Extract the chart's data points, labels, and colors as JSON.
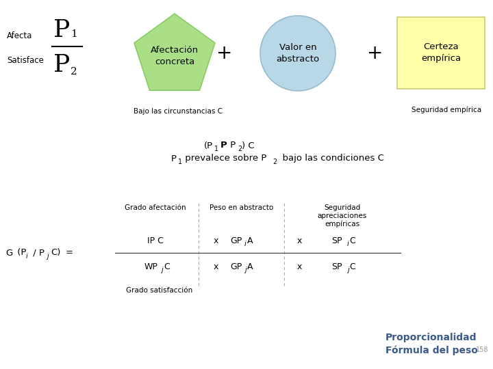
{
  "bg_color": "#ffffff",
  "blue_text_color": "#3C5A8A",
  "page_number_color": "#999999",
  "pentagon_color": "#AADE87",
  "pentagon_border": "#88CC66",
  "ellipse_color": "#B8D8E8",
  "ellipse_border": "#99BBCC",
  "rect_color": "#FFFFAA",
  "rect_border": "#CCCC77",
  "pentagon_text": "Afectación\nconcreta",
  "ellipse_text": "Valor en\nabstracto",
  "rect_text": "Certeza\nempírica",
  "bajo_text": "Bajo las circunstancias C",
  "seguridad_text": "Seguridad empírica",
  "col1_header": "Grado afectación",
  "col2_header": "Peso en abstracto",
  "col3_header": "Seguridad\napreciaciones\nempíricas",
  "grado_sat": "Grado satisfacción",
  "proporcionalidad": "Proporcionalidad",
  "formula_peso": "Fórmula del peso",
  "page_num": "158"
}
